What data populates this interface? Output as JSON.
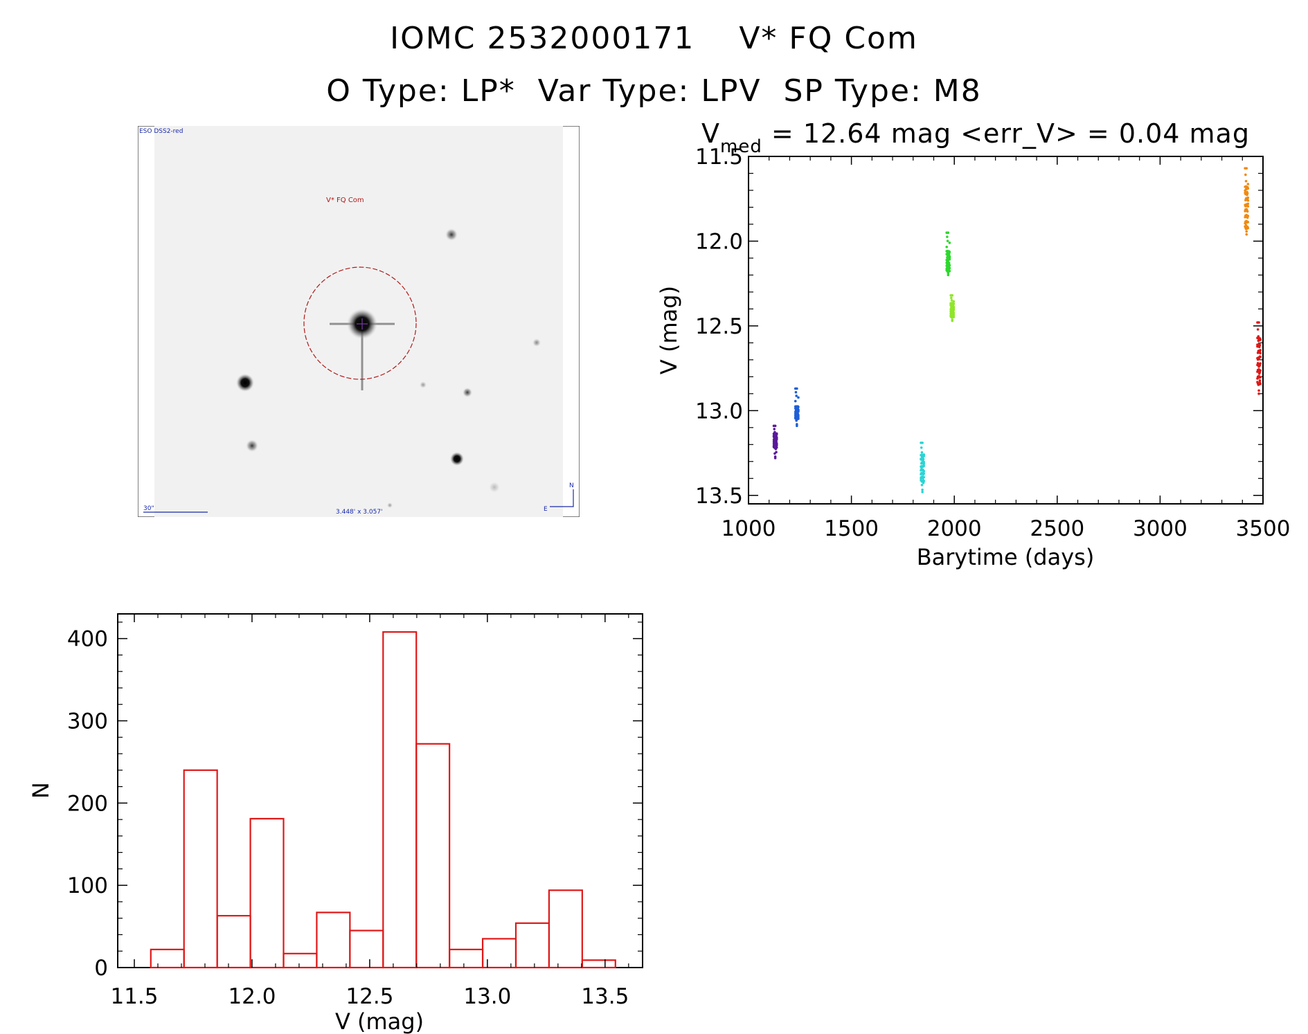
{
  "header": {
    "title_line1": "IOMC 2532000171    V* FQ Com",
    "title_line2": "O Type: LP*  Var Type: LPV  SP Type: M8"
  },
  "finder": {
    "survey_label": "ESO DSS2-red",
    "target_label": "V* FQ Com",
    "scale_label": "30\"",
    "fov_label": "3.448' x 3.057'",
    "north_label": "N",
    "east_label": "E",
    "colors": {
      "target": "#b01818",
      "labels": "#1a2aa8"
    }
  },
  "chart_data": [
    {
      "type": "scatter",
      "title_main": "V",
      "title_sub": "med",
      "title_rest": " =  12.64 mag <err_V> = 0.04 mag",
      "xlabel": "Barytime (days)",
      "ylabel": "V (mag)",
      "xlim": [
        1000,
        3500
      ],
      "ylim": [
        13.55,
        11.5
      ],
      "y_inverted": true,
      "xticks": [
        "1000",
        "1500",
        "2000",
        "2500",
        "3000",
        "3500"
      ],
      "yticks": [
        "11.5",
        "12.0",
        "12.5",
        "13.0",
        "13.5"
      ],
      "series": [
        {
          "color": "#5a189a",
          "x": 1130,
          "ymin": 13.09,
          "ymax": 13.28,
          "core_min": 13.13,
          "core_max": 13.22
        },
        {
          "color": "#1f5fd6",
          "x": 1235,
          "ymin": 12.87,
          "ymax": 13.09,
          "core_min": 12.97,
          "core_max": 13.05
        },
        {
          "color": "#2ad4d4",
          "x": 1845,
          "ymin": 13.19,
          "ymax": 13.48,
          "core_min": 13.25,
          "core_max": 13.42
        },
        {
          "color": "#2ed82e",
          "x": 1970,
          "ymin": 11.95,
          "ymax": 12.2,
          "core_min": 12.05,
          "core_max": 12.18
        },
        {
          "color": "#8ee62a",
          "x": 1990,
          "ymin": 12.32,
          "ymax": 12.47,
          "core_min": 12.36,
          "core_max": 12.45
        },
        {
          "color": "#f08a10",
          "x": 3420,
          "ymin": 11.57,
          "ymax": 11.96,
          "core_min": 11.66,
          "core_max": 11.93
        },
        {
          "color": "#e01818",
          "x": 3480,
          "ymin": 12.48,
          "ymax": 12.9,
          "core_min": 12.55,
          "core_max": 12.85
        }
      ]
    },
    {
      "type": "bar",
      "subtype": "histogram",
      "xlabel": "V (mag)",
      "ylabel": "N",
      "xlim": [
        11.5,
        13.73
      ],
      "ylim": [
        0,
        430
      ],
      "xticks": [
        "11.5",
        "12.0",
        "12.5",
        "13.0",
        "13.5"
      ],
      "yticks": [
        "0",
        "100",
        "200",
        "300",
        "400"
      ],
      "bin_width": 0.141,
      "bin_edges_start": 11.57,
      "values": [
        22,
        240,
        63,
        181,
        17,
        67,
        45,
        408,
        272,
        22,
        35,
        54,
        94,
        9
      ],
      "color": "#e01818"
    }
  ]
}
